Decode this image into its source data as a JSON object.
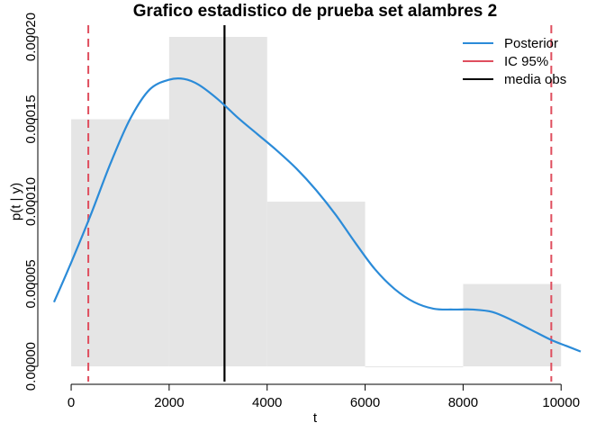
{
  "chart_data": {
    "type": "line",
    "title": "Grafico estadistico de prueba set alambres 2",
    "xlabel": "t",
    "ylabel": "p(t | y)",
    "xlim": [
      -350,
      10400
    ],
    "ylim": [
      -5e-07,
      0.0002
    ],
    "x_ticks": [
      "0",
      "2000",
      "4000",
      "6000",
      "8000",
      "10000"
    ],
    "x_tick_values": [
      0,
      2000,
      4000,
      6000,
      8000,
      10000
    ],
    "y_ticks": [
      "0.00000",
      "0.00005",
      "0.00010",
      "0.00015",
      "0.00020"
    ],
    "y_tick_values": [
      0,
      5e-05,
      0.0001,
      0.00015,
      0.0002
    ],
    "histogram": {
      "bin_edges": [
        0,
        2000,
        4000,
        6000,
        8000,
        10000
      ],
      "densities": [
        0.00015,
        0.0002,
        0.0001,
        0.0,
        5e-05
      ],
      "color": "#e5e5e5"
    },
    "series": [
      {
        "name": "Posterior",
        "color": "#2b8bd8",
        "x": [
          -350,
          0,
          400,
          800,
          1200,
          1600,
          2000,
          2300,
          2600,
          3000,
          3400,
          3800,
          4200,
          4600,
          5000,
          5400,
          5800,
          6200,
          6600,
          7000,
          7400,
          7800,
          8200,
          8600,
          9000,
          9400,
          9800,
          10100,
          10400
        ],
        "y": [
          3.9e-05,
          6.3e-05,
          9.2e-05,
          0.000123,
          0.00015,
          0.000168,
          0.000174,
          0.0001745,
          0.000171,
          0.000162,
          0.000151,
          0.000141,
          0.000131,
          0.00012,
          0.000107,
          9.2e-05,
          7.5e-05,
          5.9e-05,
          4.7e-05,
          3.9e-05,
          3.5e-05,
          3.45e-05,
          3.45e-05,
          3.3e-05,
          2.8e-05,
          2.2e-05,
          1.6e-05,
          1.25e-05,
          9e-06
        ]
      }
    ],
    "vlines": [
      {
        "name": "IC 95%",
        "x": 350,
        "color": "#df4e5e",
        "dashed": true
      },
      {
        "name": "IC 95%",
        "x": 9800,
        "color": "#df4e5e",
        "dashed": true
      },
      {
        "name": "media obs",
        "x": 3130,
        "color": "#000000",
        "dashed": false
      }
    ],
    "legend": {
      "placement": "top-right",
      "entries": [
        {
          "label": "Posterior",
          "color": "#2b8bd8"
        },
        {
          "label": "IC 95%",
          "color": "#df4e5e"
        },
        {
          "label": "media obs",
          "color": "#000000"
        }
      ]
    },
    "grid": false
  }
}
